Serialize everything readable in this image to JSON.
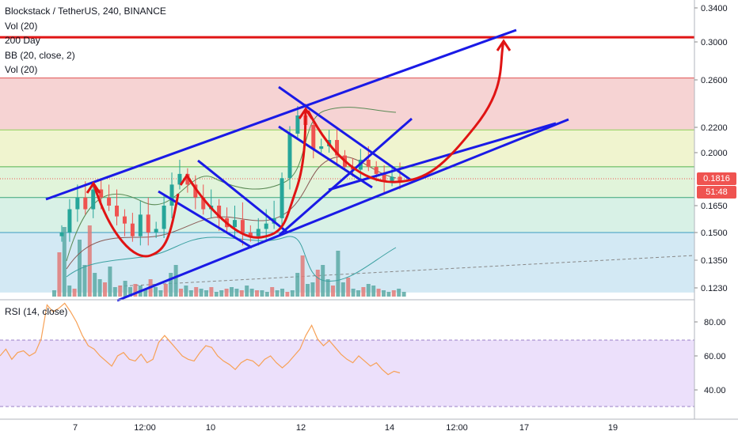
{
  "legend": {
    "title": "Blockstack / TetherUS, 240, BINANCE",
    "indicators": [
      "Vol (20)",
      "200 Day",
      "BB (20, close, 2)",
      "Vol (20)"
    ]
  },
  "rsi_label": "RSI (14, close)",
  "price_tags": {
    "last_price": "0.1816",
    "countdown": "51:48"
  },
  "colors": {
    "accent_red": "#e01414",
    "trend_blue": "#1a1ae6",
    "candle_up": "#26a69a",
    "candle_down": "#ef5350",
    "rsi_line": "#f7a156",
    "rsi_band": "#ece0fb",
    "price_tag_red": "#ef5350"
  },
  "chart_data": [
    {
      "type": "candlestick",
      "title": "Blockstack / TetherUS, 240, BINANCE",
      "price_axis_ticks": [
        0.34,
        0.3,
        0.26,
        0.22,
        0.2,
        0.1816,
        0.165,
        0.15,
        0.135,
        0.123
      ],
      "price_axis_labels": [
        "0.3400",
        "0.3000",
        "0.2600",
        "0.2200",
        "0.2000",
        "0.1650",
        "0.1500",
        "0.1350",
        "0.1230"
      ],
      "time_axis_labels": [
        "7",
        "12:00",
        "10",
        "12",
        "14",
        "12:00",
        "17",
        "19"
      ],
      "horizontal_levels": [
        0.3055,
        0.262,
        0.218,
        0.19,
        0.17,
        0.15
      ],
      "resistance_target": 0.3055,
      "last_price": 0.1816,
      "series": [
        {
          "name": "Close",
          "values": [
            0.15,
            0.163,
            0.17,
            0.163,
            0.175,
            0.17,
            0.165,
            0.159,
            0.155,
            0.148,
            0.16,
            0.15,
            0.152,
            0.165,
            0.178,
            0.185,
            0.178,
            0.17,
            0.163,
            0.165,
            0.158,
            0.153,
            0.157,
            0.15,
            0.148,
            0.152,
            0.155,
            0.158,
            0.182,
            0.215,
            0.23,
            0.222,
            0.203,
            0.205,
            0.21,
            0.198,
            0.19,
            0.188,
            0.195,
            0.19,
            0.185,
            0.18,
            0.183,
            0.18
          ]
        }
      ]
    },
    {
      "type": "line",
      "title": "RSI (14, close)",
      "yticks": [
        "80.00",
        "60.00",
        "40.00"
      ],
      "ylim": [
        24,
        100
      ],
      "series": [
        {
          "name": "RSI",
          "values": [
            60,
            64,
            58,
            62,
            63,
            60,
            62,
            70,
            90,
            86,
            88,
            91,
            86,
            80,
            72,
            66,
            64,
            60,
            57,
            54,
            60,
            62,
            58,
            57,
            61,
            56,
            58,
            68,
            72,
            68,
            64,
            60,
            58,
            57,
            62,
            66,
            65,
            60,
            57,
            55,
            52,
            56,
            58,
            57,
            54,
            58,
            60,
            56,
            53,
            56,
            60,
            64,
            72,
            78,
            70,
            66,
            69,
            65,
            61,
            58,
            56,
            60,
            57,
            54,
            56,
            52,
            49,
            51,
            50
          ]
        }
      ]
    }
  ]
}
